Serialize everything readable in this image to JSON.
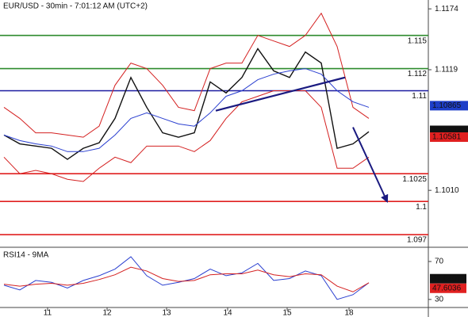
{
  "chart_data": {
    "type": "line",
    "title": "EUR/USD - 30min - 7:01:12 AM (UTC+2)",
    "x": [
      5,
      25,
      45,
      65,
      85,
      105,
      125,
      145,
      165,
      185,
      205,
      225,
      245,
      265,
      285,
      305,
      325,
      345,
      365,
      385,
      405,
      425,
      445,
      465
    ],
    "xlim": [
      0,
      540
    ],
    "xticks": [
      {
        "value": 60,
        "label": "11"
      },
      {
        "value": 135,
        "label": "12"
      },
      {
        "value": 210,
        "label": "13"
      },
      {
        "value": 287,
        "label": "14"
      },
      {
        "value": 362,
        "label": "15"
      },
      {
        "value": 440,
        "label": "18"
      }
    ],
    "ylim": [
      1.096,
      1.1182
    ],
    "yticks": [
      1.1174,
      1.1119,
      {
        "value": 1.101,
        "label": "1.1010"
      }
    ],
    "grid": false,
    "series": [
      {
        "color": "#111111",
        "values": [
          1.106,
          1.1052,
          1.105,
          1.1048,
          1.1038,
          1.1048,
          1.1053,
          1.1075,
          1.1112,
          1.1085,
          1.1062,
          1.1058,
          1.1062,
          1.1108,
          1.1098,
          1.1112,
          1.1138,
          1.1118,
          1.1112,
          1.1135,
          1.1125,
          1.1048,
          1.1052,
          1.1063
        ]
      },
      {
        "color": "#d42020",
        "values": [
          1.1085,
          1.1075,
          1.1062,
          1.1062,
          1.106,
          1.1058,
          1.1068,
          1.1105,
          1.1125,
          1.112,
          1.1105,
          1.1085,
          1.1082,
          1.112,
          1.1125,
          1.1125,
          1.115,
          1.1145,
          1.114,
          1.115,
          1.117,
          1.114,
          1.1085,
          1.1075
        ]
      },
      {
        "color": "#d42020",
        "values": [
          1.104,
          1.1025,
          1.1028,
          1.1025,
          1.102,
          1.1018,
          1.103,
          1.104,
          1.1035,
          1.105,
          1.105,
          1.105,
          1.1045,
          1.1055,
          1.1075,
          1.109,
          1.1095,
          1.11,
          1.11,
          1.11,
          1.1085,
          1.103,
          1.103,
          1.104
        ]
      },
      {
        "color": "#2a3fd0",
        "values": [
          1.106,
          1.1055,
          1.1052,
          1.105,
          1.1045,
          1.1045,
          1.1048,
          1.106,
          1.1075,
          1.108,
          1.1075,
          1.107,
          1.1068,
          1.108,
          1.1095,
          1.11,
          1.111,
          1.1115,
          1.1118,
          1.112,
          1.1115,
          1.11,
          1.109,
          1.1085
        ]
      }
    ],
    "levels": [
      {
        "value": 1.115,
        "color": "#2e8b2e"
      },
      {
        "value": 1.112,
        "color": "#2e8b2e"
      },
      {
        "value": 1.11,
        "color": "#1a1aa0"
      },
      {
        "value": 1.1025,
        "color": "#e02020"
      },
      {
        "value": 1.1,
        "color": "#e02020"
      },
      {
        "value": 1.097,
        "color": "#e02020"
      }
    ],
    "trendline": {
      "x": [
        272,
        435
      ],
      "y": [
        1.1082,
        1.1112
      ],
      "color": "#1a1a80"
    },
    "arrow": {
      "x": [
        445,
        488
      ],
      "y": [
        1.1067,
        1.1
      ],
      "color": "#1a1a80"
    },
    "price_tags": [
      {
        "value": 1.10865,
        "color": "#1e3fc8"
      },
      {
        "value": 1.10642,
        "color": "#111111"
      },
      {
        "value": 1.10581,
        "color": "#e02020"
      }
    ],
    "rsi": {
      "label": "RSI14 - 9MA",
      "ylim": [
        24,
        82.5
      ],
      "yticks": [
        70,
        30
      ],
      "series": [
        {
          "color": "#2a3fd0",
          "values": [
            45,
            40,
            50,
            48,
            42,
            50,
            55,
            62,
            75,
            55,
            45,
            48,
            52,
            62,
            55,
            58,
            68,
            50,
            52,
            60,
            55,
            30,
            35,
            47.6407
          ]
        },
        {
          "color": "#d42020",
          "values": [
            46,
            44,
            46,
            47,
            45,
            47,
            51,
            56,
            64,
            60,
            52,
            49,
            50,
            56,
            57,
            57,
            61,
            56,
            54,
            57,
            56,
            44,
            38,
            47.6036
          ]
        }
      ],
      "tags": [
        {
          "value": 47.6407,
          "color": "#111111"
        },
        {
          "value": 47.6036,
          "color": "#e02020"
        }
      ]
    }
  }
}
